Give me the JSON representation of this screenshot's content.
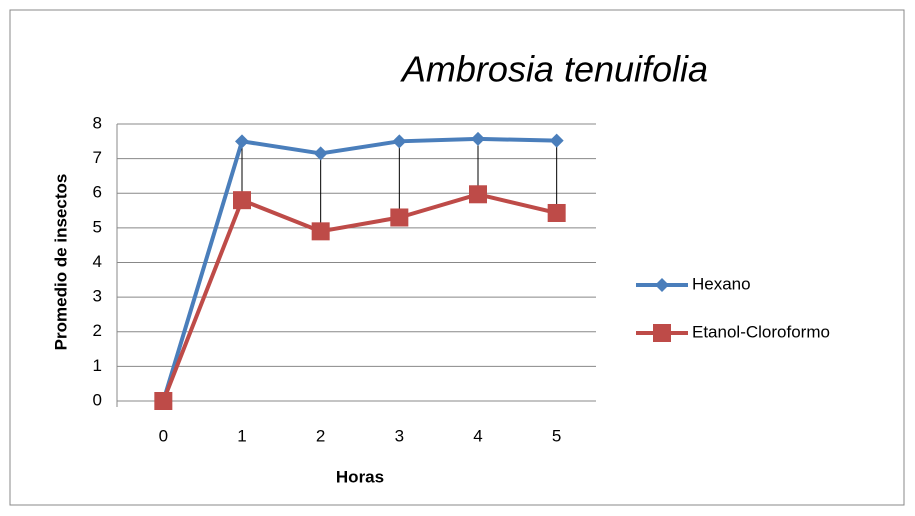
{
  "chart_data": {
    "type": "line",
    "title": "Ambrosia tenuifolia",
    "x_label": "Horas",
    "y_label": "Promedio de insectos",
    "categories": [
      "0",
      "1",
      "2",
      "3",
      "4",
      "5"
    ],
    "series": [
      {
        "name": "Hexano",
        "color": "#4a7ebb",
        "marker": "diamond",
        "values": [
          0,
          7.5,
          7.15,
          7.5,
          7.57,
          7.52
        ]
      },
      {
        "name": "Etanol-Cloroformo",
        "color": "#be4b48",
        "marker": "square",
        "values": [
          0,
          5.8,
          4.9,
          5.3,
          5.97,
          5.43
        ]
      }
    ],
    "ylim": [
      0,
      8
    ],
    "yticks": [
      0,
      1,
      2,
      3,
      4,
      5,
      6,
      7,
      8
    ],
    "grid": true,
    "high_low_lines": true,
    "legend": "right"
  }
}
